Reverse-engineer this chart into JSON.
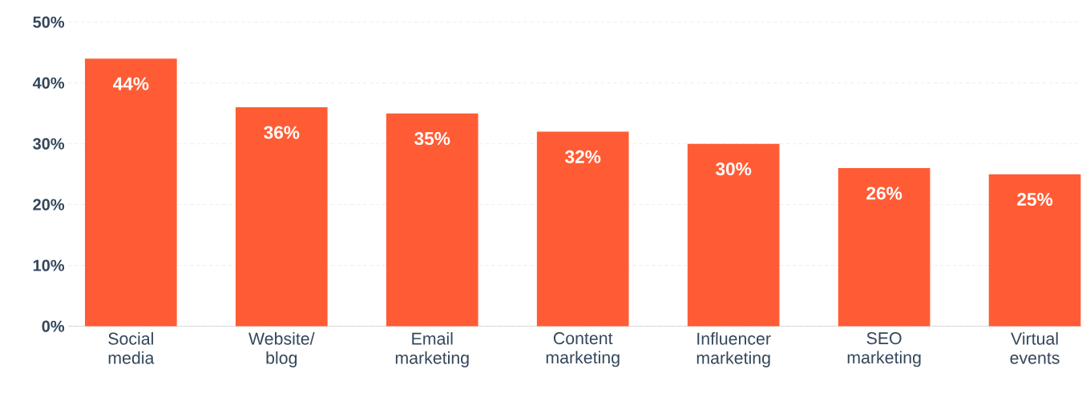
{
  "chart_data": {
    "type": "bar",
    "categories": [
      "Social media",
      "Website/ blog",
      "Email marketing",
      "Content marketing",
      "Influencer marketing",
      "SEO marketing",
      "Virtual events"
    ],
    "values": [
      44,
      36,
      35,
      32,
      30,
      26,
      25
    ],
    "value_labels": [
      "44%",
      "36%",
      "35%",
      "32%",
      "30%",
      "26%",
      "25%"
    ],
    "color": "#ff5c35",
    "ylim": [
      0,
      50
    ],
    "yticks": [
      {
        "value": 0,
        "label": "0%"
      },
      {
        "value": 10,
        "label": "10%"
      },
      {
        "value": 20,
        "label": "20%"
      },
      {
        "value": 30,
        "label": "30%"
      },
      {
        "value": 40,
        "label": "40%"
      },
      {
        "value": 50,
        "label": "50%"
      }
    ],
    "grid": "y"
  }
}
